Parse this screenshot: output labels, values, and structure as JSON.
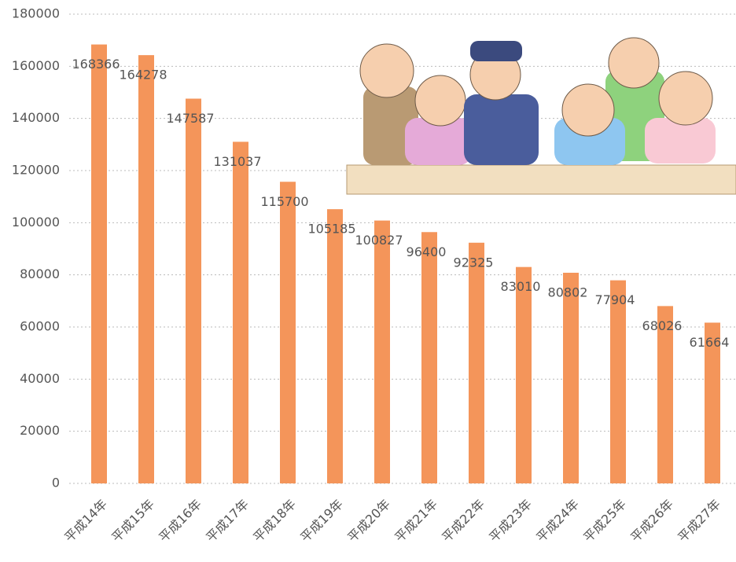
{
  "chart_data": {
    "type": "bar",
    "categories": [
      "平成14年",
      "平成15年",
      "平成16年",
      "平成17年",
      "平成18年",
      "平成19年",
      "平成20年",
      "平成21年",
      "平成22年",
      "平成23年",
      "平成24年",
      "平成25年",
      "平成26年",
      "平成27年"
    ],
    "values": [
      168366,
      164278,
      147587,
      131037,
      115700,
      105185,
      100827,
      96400,
      92325,
      83010,
      80802,
      77904,
      68026,
      61664
    ],
    "color": "#f4955a",
    "ylim": [
      0,
      180000
    ],
    "yticks": [
      0,
      20000,
      40000,
      60000,
      80000,
      100000,
      120000,
      140000,
      160000,
      180000
    ],
    "grid": true
  }
}
